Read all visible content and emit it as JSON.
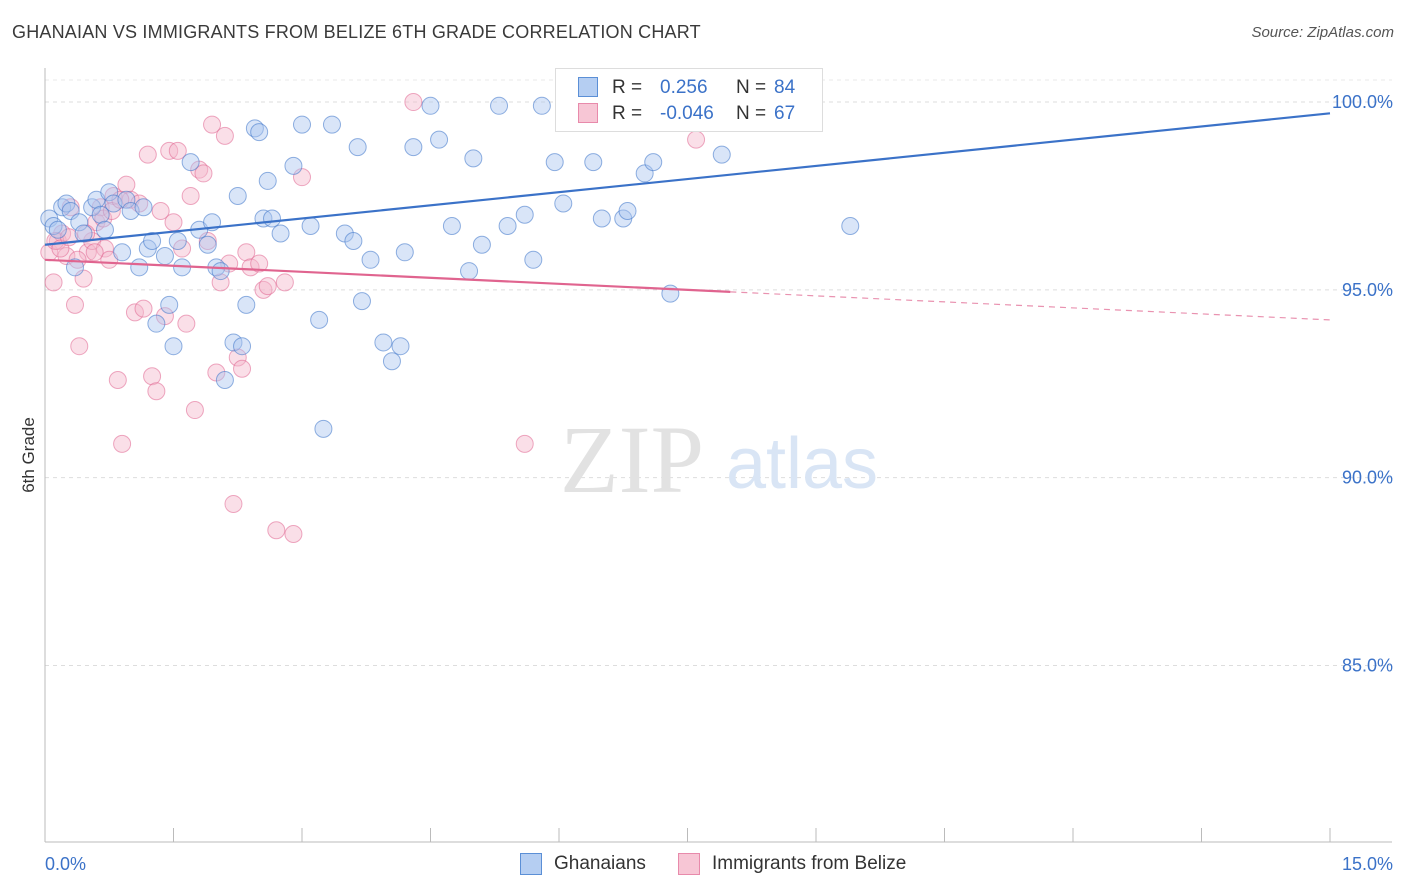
{
  "header": {
    "title": "GHANAIAN VS IMMIGRANTS FROM BELIZE 6TH GRADE CORRELATION CHART",
    "source": "Source: ZipAtlas.com"
  },
  "legend_box": {
    "rows": [
      {
        "r_label": "R =",
        "r_value": "0.256",
        "n_label": "N =",
        "n_value": "84"
      },
      {
        "r_label": "R =",
        "r_value": "-0.046",
        "n_label": "N =",
        "n_value": "67"
      }
    ]
  },
  "bottom_legend": {
    "items": [
      "Ghanaians",
      "Immigrants from Belize"
    ]
  },
  "watermark": {
    "zip": "ZIP",
    "atlas": "atlas"
  },
  "colors": {
    "blue": "#3b72c8",
    "blue_fill": "#aac6ef",
    "pink": "#e0648f",
    "pink_fill": "#f5b8cb",
    "axis_label": "#3b72c8",
    "grid": "#dddddd"
  },
  "chart_data": {
    "type": "scatter",
    "title": "GHANAIAN VS IMMIGRANTS FROM BELIZE 6TH GRADE CORRELATION CHART",
    "xlabel": "",
    "ylabel": "6th Grade",
    "xlim": [
      0,
      15
    ],
    "ylim": [
      80.3,
      100.8
    ],
    "x_tick_labels": [
      "0.0%",
      "15.0%"
    ],
    "y_ticks": [
      100,
      95,
      90,
      85
    ],
    "y_tick_labels": [
      "100.0%",
      "95.0%",
      "90.0%",
      "85.0%"
    ],
    "grid": true,
    "series": [
      {
        "name": "Ghanaians",
        "R": 0.256,
        "N": 84,
        "trend": {
          "x0": 0,
          "y0": 96.2,
          "x1": 15,
          "y1": 99.7,
          "solid_until": 15
        },
        "points": [
          [
            0.05,
            96.9
          ],
          [
            0.1,
            96.7
          ],
          [
            0.15,
            96.6
          ],
          [
            0.2,
            97.2
          ],
          [
            0.25,
            97.3
          ],
          [
            0.3,
            97.1
          ],
          [
            0.35,
            95.6
          ],
          [
            0.4,
            96.8
          ],
          [
            0.45,
            96.5
          ],
          [
            0.55,
            97.2
          ],
          [
            0.6,
            97.4
          ],
          [
            0.65,
            97.0
          ],
          [
            0.7,
            96.6
          ],
          [
            0.75,
            97.6
          ],
          [
            0.8,
            97.3
          ],
          [
            0.9,
            96.0
          ],
          [
            0.95,
            97.4
          ],
          [
            1.0,
            97.1
          ],
          [
            1.1,
            95.6
          ],
          [
            1.15,
            97.2
          ],
          [
            1.2,
            96.1
          ],
          [
            1.25,
            96.3
          ],
          [
            1.3,
            94.1
          ],
          [
            1.4,
            95.9
          ],
          [
            1.45,
            94.6
          ],
          [
            1.5,
            93.5
          ],
          [
            1.55,
            96.3
          ],
          [
            1.6,
            95.6
          ],
          [
            1.7,
            98.4
          ],
          [
            1.8,
            96.6
          ],
          [
            1.9,
            96.2
          ],
          [
            1.95,
            96.8
          ],
          [
            2.0,
            95.6
          ],
          [
            2.05,
            95.5
          ],
          [
            2.1,
            92.6
          ],
          [
            2.2,
            93.6
          ],
          [
            2.25,
            97.5
          ],
          [
            2.3,
            93.5
          ],
          [
            2.35,
            94.6
          ],
          [
            2.45,
            99.3
          ],
          [
            2.5,
            99.2
          ],
          [
            2.55,
            96.9
          ],
          [
            2.6,
            97.9
          ],
          [
            2.65,
            96.9
          ],
          [
            2.75,
            96.5
          ],
          [
            2.9,
            98.3
          ],
          [
            3.0,
            99.4
          ],
          [
            3.1,
            96.7
          ],
          [
            3.2,
            94.2
          ],
          [
            3.25,
            91.3
          ],
          [
            3.35,
            99.4
          ],
          [
            3.5,
            96.5
          ],
          [
            3.6,
            96.3
          ],
          [
            3.65,
            98.8
          ],
          [
            3.7,
            94.7
          ],
          [
            3.8,
            95.8
          ],
          [
            3.95,
            93.6
          ],
          [
            4.05,
            93.1
          ],
          [
            4.15,
            93.5
          ],
          [
            4.2,
            96.0
          ],
          [
            4.3,
            98.8
          ],
          [
            4.5,
            99.9
          ],
          [
            4.6,
            99.0
          ],
          [
            4.75,
            96.7
          ],
          [
            4.95,
            95.5
          ],
          [
            5.0,
            98.5
          ],
          [
            5.1,
            96.2
          ],
          [
            5.3,
            99.9
          ],
          [
            5.4,
            96.7
          ],
          [
            5.6,
            97.0
          ],
          [
            5.7,
            95.8
          ],
          [
            5.8,
            99.9
          ],
          [
            5.95,
            98.4
          ],
          [
            6.05,
            97.3
          ],
          [
            6.25,
            99.9
          ],
          [
            6.4,
            98.4
          ],
          [
            6.5,
            96.9
          ],
          [
            6.75,
            96.9
          ],
          [
            6.8,
            97.1
          ],
          [
            7.0,
            98.1
          ],
          [
            7.1,
            98.4
          ],
          [
            7.3,
            94.9
          ],
          [
            7.9,
            98.6
          ],
          [
            9.4,
            96.7
          ]
        ]
      },
      {
        "name": "Immigrants from Belize",
        "R": -0.046,
        "N": 67,
        "trend": {
          "x0": 0,
          "y0": 95.8,
          "x1": 15,
          "y1": 94.2,
          "solid_until": 8.0
        },
        "points": [
          [
            0.05,
            96.0
          ],
          [
            0.1,
            95.2
          ],
          [
            0.15,
            96.3
          ],
          [
            0.2,
            96.5
          ],
          [
            0.25,
            95.9
          ],
          [
            0.3,
            97.2
          ],
          [
            0.35,
            94.6
          ],
          [
            0.4,
            93.5
          ],
          [
            0.45,
            95.3
          ],
          [
            0.5,
            96.0
          ],
          [
            0.55,
            96.3
          ],
          [
            0.6,
            96.8
          ],
          [
            0.65,
            97.2
          ],
          [
            0.7,
            96.1
          ],
          [
            0.75,
            95.8
          ],
          [
            0.8,
            97.5
          ],
          [
            0.85,
            92.6
          ],
          [
            0.9,
            90.9
          ],
          [
            0.95,
            97.8
          ],
          [
            1.0,
            97.4
          ],
          [
            1.05,
            94.4
          ],
          [
            1.1,
            97.3
          ],
          [
            1.15,
            94.5
          ],
          [
            1.2,
            98.6
          ],
          [
            1.25,
            92.7
          ],
          [
            1.3,
            92.3
          ],
          [
            1.35,
            97.1
          ],
          [
            1.4,
            94.3
          ],
          [
            1.45,
            98.7
          ],
          [
            1.5,
            96.8
          ],
          [
            1.55,
            98.7
          ],
          [
            1.6,
            96.1
          ],
          [
            1.65,
            94.1
          ],
          [
            1.7,
            97.5
          ],
          [
            1.75,
            91.8
          ],
          [
            1.8,
            98.2
          ],
          [
            1.85,
            98.1
          ],
          [
            1.9,
            96.3
          ],
          [
            1.95,
            99.4
          ],
          [
            2.0,
            92.8
          ],
          [
            2.05,
            95.2
          ],
          [
            2.1,
            99.1
          ],
          [
            2.15,
            95.7
          ],
          [
            2.2,
            89.3
          ],
          [
            2.25,
            93.2
          ],
          [
            2.3,
            92.9
          ],
          [
            2.35,
            96.0
          ],
          [
            2.4,
            95.6
          ],
          [
            2.5,
            95.7
          ],
          [
            2.55,
            95.0
          ],
          [
            2.6,
            95.1
          ],
          [
            2.7,
            88.6
          ],
          [
            2.8,
            95.2
          ],
          [
            2.9,
            88.5
          ],
          [
            3.0,
            98.0
          ],
          [
            0.12,
            96.3
          ],
          [
            0.18,
            96.1
          ],
          [
            0.28,
            96.4
          ],
          [
            0.38,
            95.8
          ],
          [
            0.48,
            96.5
          ],
          [
            0.58,
            96.0
          ],
          [
            0.68,
            96.9
          ],
          [
            0.78,
            97.1
          ],
          [
            0.88,
            97.4
          ],
          [
            4.3,
            100.0
          ],
          [
            5.6,
            90.9
          ],
          [
            7.6,
            99.0
          ]
        ]
      }
    ]
  }
}
